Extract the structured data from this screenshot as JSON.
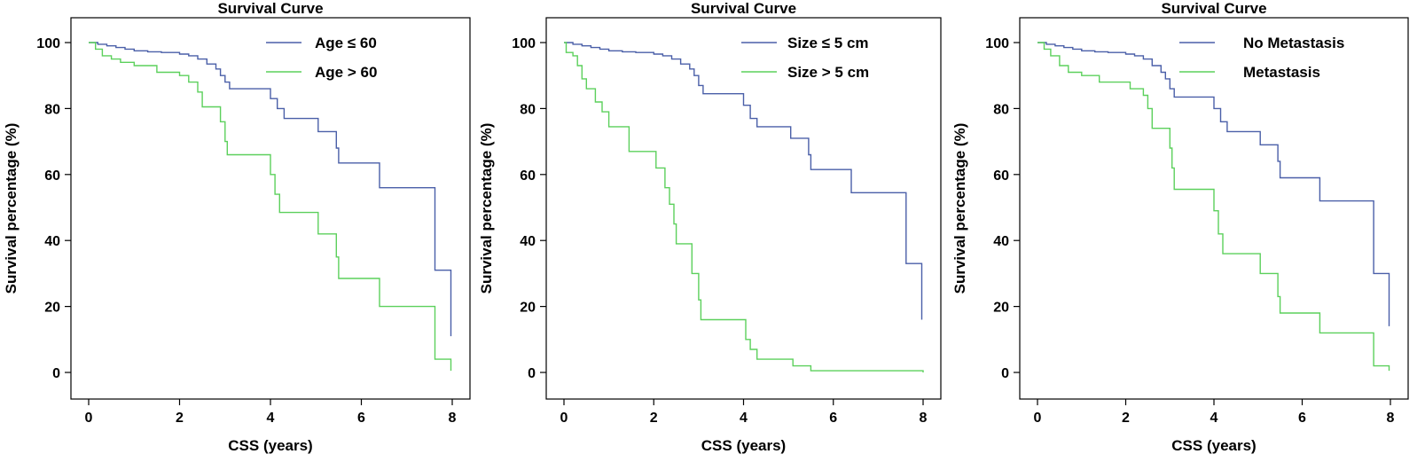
{
  "colors": {
    "series_a": "#4a5fa8",
    "series_b": "#5cd05c"
  },
  "chart_data": [
    {
      "type": "line",
      "title": "Survival Curve",
      "xlabel": "CSS (years)",
      "ylabel": "Survival percentage (%)",
      "xlim": [
        0,
        8
      ],
      "ylim": [
        0,
        100
      ],
      "xticks": [
        "0",
        "2",
        "4",
        "6",
        "8"
      ],
      "yticks": [
        "0",
        "20",
        "40",
        "60",
        "80",
        "100"
      ],
      "legend_position": "top-right",
      "series": [
        {
          "name": "Age ≤ 60",
          "color": "#4a5fa8",
          "points": [
            [
              0,
              100
            ],
            [
              0.2,
              99.5
            ],
            [
              0.4,
              99
            ],
            [
              0.6,
              98.5
            ],
            [
              0.8,
              98
            ],
            [
              1.0,
              97.5
            ],
            [
              1.3,
              97.2
            ],
            [
              1.6,
              97
            ],
            [
              2.0,
              96.5
            ],
            [
              2.2,
              96
            ],
            [
              2.4,
              95
            ],
            [
              2.6,
              93.5
            ],
            [
              2.8,
              92
            ],
            [
              2.9,
              90
            ],
            [
              3.0,
              88
            ],
            [
              3.1,
              86
            ],
            [
              3.9,
              86
            ],
            [
              4.0,
              83
            ],
            [
              4.15,
              80
            ],
            [
              4.3,
              77
            ],
            [
              5.0,
              77
            ],
            [
              5.05,
              73
            ],
            [
              5.4,
              73
            ],
            [
              5.45,
              68
            ],
            [
              5.5,
              63.5
            ],
            [
              6.35,
              63.5
            ],
            [
              6.4,
              56
            ],
            [
              7.6,
              56
            ],
            [
              7.62,
              31
            ],
            [
              7.95,
              31
            ],
            [
              7.97,
              11
            ]
          ]
        },
        {
          "name": "Age > 60",
          "color": "#5cd05c",
          "points": [
            [
              0,
              100
            ],
            [
              0.15,
              98
            ],
            [
              0.3,
              96
            ],
            [
              0.5,
              95
            ],
            [
              0.7,
              94
            ],
            [
              1.0,
              93
            ],
            [
              1.5,
              91
            ],
            [
              2.0,
              90
            ],
            [
              2.2,
              88
            ],
            [
              2.4,
              85
            ],
            [
              2.5,
              80.5
            ],
            [
              2.8,
              80.5
            ],
            [
              2.9,
              76
            ],
            [
              3.0,
              70
            ],
            [
              3.05,
              66
            ],
            [
              3.9,
              66
            ],
            [
              4.0,
              60
            ],
            [
              4.1,
              54
            ],
            [
              4.2,
              48.5
            ],
            [
              5.0,
              48.5
            ],
            [
              5.05,
              42
            ],
            [
              5.4,
              42
            ],
            [
              5.45,
              35
            ],
            [
              5.5,
              28.5
            ],
            [
              6.35,
              28.5
            ],
            [
              6.4,
              20
            ],
            [
              7.6,
              20
            ],
            [
              7.62,
              4
            ],
            [
              7.95,
              4
            ],
            [
              7.97,
              0.5
            ]
          ]
        }
      ]
    },
    {
      "type": "line",
      "title": "Survival Curve",
      "xlabel": "CSS (years)",
      "ylabel": "Survival percentage (%)",
      "xlim": [
        0,
        8
      ],
      "ylim": [
        0,
        100
      ],
      "xticks": [
        "0",
        "2",
        "4",
        "6",
        "8"
      ],
      "yticks": [
        "0",
        "20",
        "40",
        "60",
        "80",
        "100"
      ],
      "legend_position": "top-right",
      "series": [
        {
          "name": "Size ≤ 5 cm",
          "color": "#4a5fa8",
          "points": [
            [
              0,
              100
            ],
            [
              0.2,
              99.5
            ],
            [
              0.4,
              99
            ],
            [
              0.6,
              98.5
            ],
            [
              0.8,
              98
            ],
            [
              1.0,
              97.5
            ],
            [
              1.3,
              97.2
            ],
            [
              1.6,
              97
            ],
            [
              2.0,
              96.5
            ],
            [
              2.2,
              96
            ],
            [
              2.4,
              95
            ],
            [
              2.6,
              93.5
            ],
            [
              2.8,
              92
            ],
            [
              2.9,
              90
            ],
            [
              3.0,
              87
            ],
            [
              3.1,
              84.5
            ],
            [
              3.9,
              84.5
            ],
            [
              4.0,
              81
            ],
            [
              4.15,
              77
            ],
            [
              4.3,
              74.5
            ],
            [
              5.0,
              74.5
            ],
            [
              5.05,
              71
            ],
            [
              5.4,
              71
            ],
            [
              5.45,
              66
            ],
            [
              5.5,
              61.5
            ],
            [
              6.35,
              61.5
            ],
            [
              6.4,
              54.5
            ],
            [
              7.6,
              54.5
            ],
            [
              7.62,
              33
            ],
            [
              7.95,
              33
            ],
            [
              7.97,
              16
            ]
          ]
        },
        {
          "name": "Size > 5 cm",
          "color": "#5cd05c",
          "points": [
            [
              0,
              100
            ],
            [
              0.05,
              97
            ],
            [
              0.2,
              96
            ],
            [
              0.3,
              93
            ],
            [
              0.4,
              89
            ],
            [
              0.5,
              86
            ],
            [
              0.7,
              82
            ],
            [
              0.85,
              79
            ],
            [
              1.0,
              74.5
            ],
            [
              1.4,
              74.5
            ],
            [
              1.45,
              67
            ],
            [
              2.0,
              67
            ],
            [
              2.05,
              62
            ],
            [
              2.2,
              62
            ],
            [
              2.25,
              56
            ],
            [
              2.35,
              51
            ],
            [
              2.45,
              45
            ],
            [
              2.5,
              39
            ],
            [
              2.8,
              39
            ],
            [
              2.85,
              30
            ],
            [
              3.0,
              22
            ],
            [
              3.05,
              16
            ],
            [
              4.0,
              16
            ],
            [
              4.05,
              10
            ],
            [
              4.15,
              7
            ],
            [
              4.3,
              4
            ],
            [
              5.0,
              4
            ],
            [
              5.1,
              2
            ],
            [
              5.5,
              0.5
            ],
            [
              8,
              0
            ]
          ]
        }
      ]
    },
    {
      "type": "line",
      "title": "Survival Curve",
      "xlabel": "CSS (years)",
      "ylabel": "Survival percentage (%)",
      "xlim": [
        0,
        8
      ],
      "ylim": [
        0,
        100
      ],
      "xticks": [
        "0",
        "2",
        "4",
        "6",
        "8"
      ],
      "yticks": [
        "0",
        "20",
        "40",
        "60",
        "80",
        "100"
      ],
      "legend_position": "top-right",
      "series": [
        {
          "name": "No Metastasis",
          "color": "#4a5fa8",
          "points": [
            [
              0,
              100
            ],
            [
              0.2,
              99.5
            ],
            [
              0.4,
              99
            ],
            [
              0.6,
              98.5
            ],
            [
              0.8,
              98
            ],
            [
              1.0,
              97.5
            ],
            [
              1.3,
              97.2
            ],
            [
              1.6,
              97
            ],
            [
              2.0,
              96.5
            ],
            [
              2.2,
              96
            ],
            [
              2.4,
              95
            ],
            [
              2.6,
              93
            ],
            [
              2.8,
              91
            ],
            [
              2.9,
              89
            ],
            [
              3.0,
              86
            ],
            [
              3.1,
              83.5
            ],
            [
              3.9,
              83.5
            ],
            [
              4.0,
              80
            ],
            [
              4.15,
              76
            ],
            [
              4.3,
              73
            ],
            [
              5.0,
              73
            ],
            [
              5.05,
              69
            ],
            [
              5.4,
              69
            ],
            [
              5.45,
              64
            ],
            [
              5.5,
              59
            ],
            [
              6.35,
              59
            ],
            [
              6.4,
              52
            ],
            [
              7.6,
              52
            ],
            [
              7.62,
              30
            ],
            [
              7.95,
              30
            ],
            [
              7.97,
              14
            ]
          ]
        },
        {
          "name": "Metastasis",
          "color": "#5cd05c",
          "points": [
            [
              0,
              100
            ],
            [
              0.15,
              98
            ],
            [
              0.3,
              96
            ],
            [
              0.5,
              93
            ],
            [
              0.7,
              91
            ],
            [
              1.0,
              90
            ],
            [
              1.4,
              88
            ],
            [
              2.0,
              88
            ],
            [
              2.1,
              86
            ],
            [
              2.4,
              84
            ],
            [
              2.5,
              80
            ],
            [
              2.6,
              74
            ],
            [
              2.9,
              74
            ],
            [
              3.0,
              68
            ],
            [
              3.05,
              62
            ],
            [
              3.1,
              55.5
            ],
            [
              3.9,
              55.5
            ],
            [
              4.0,
              49
            ],
            [
              4.1,
              42
            ],
            [
              4.2,
              36
            ],
            [
              5.0,
              36
            ],
            [
              5.05,
              30
            ],
            [
              5.4,
              30
            ],
            [
              5.45,
              23
            ],
            [
              5.5,
              18
            ],
            [
              6.35,
              18
            ],
            [
              6.4,
              12
            ],
            [
              7.6,
              12
            ],
            [
              7.62,
              2
            ],
            [
              7.95,
              2
            ],
            [
              7.97,
              0.5
            ]
          ]
        }
      ]
    }
  ]
}
